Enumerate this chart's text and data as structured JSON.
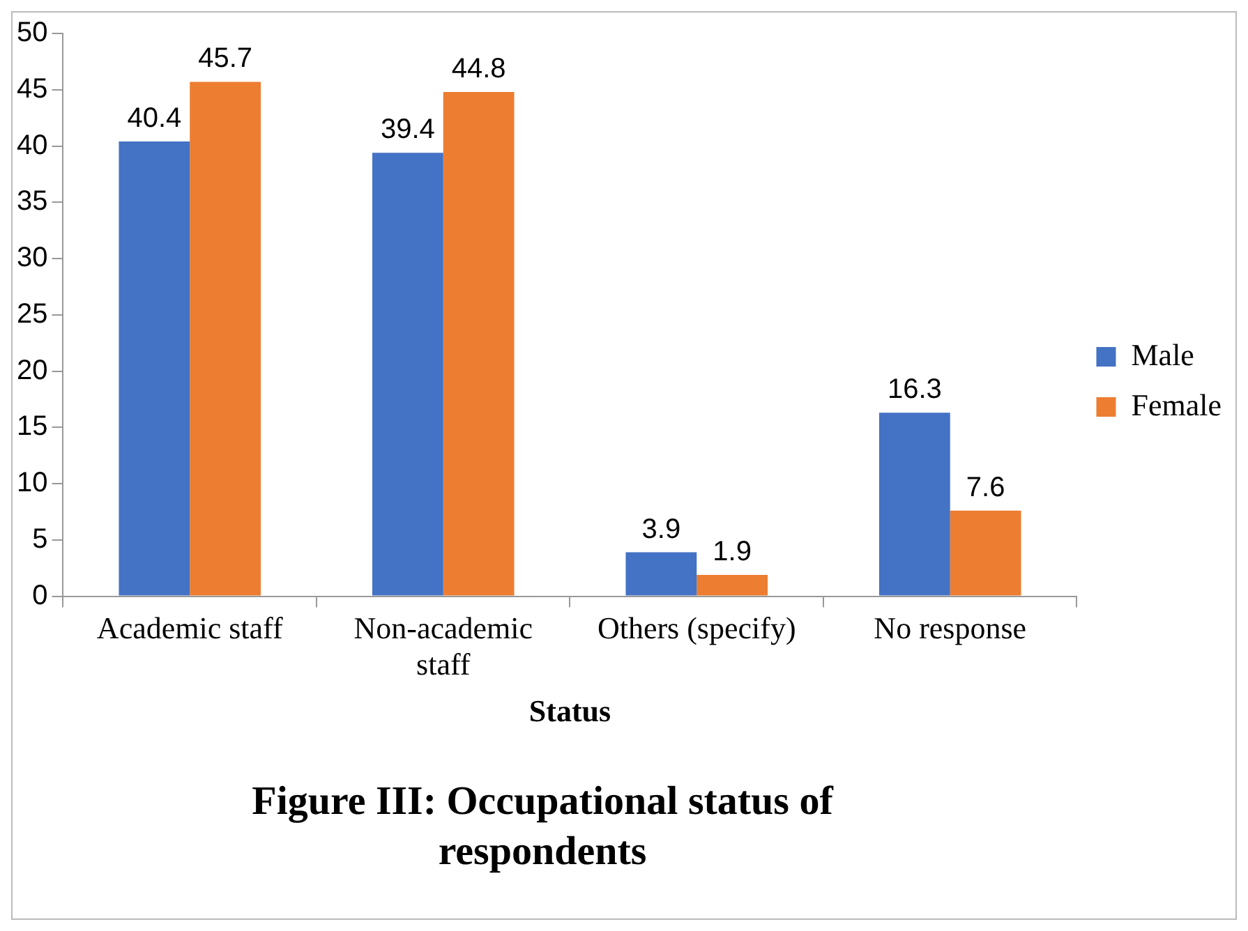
{
  "chart_data": {
    "type": "bar",
    "title": "Figure III: Occupational status of respondents",
    "xlabel": "Status",
    "categories": [
      "Academic staff",
      "Non-academic staff",
      "Others (specify)",
      "No response"
    ],
    "series": [
      {
        "name": "Male",
        "color": "#4472c4",
        "values": [
          40.4,
          39.4,
          3.9,
          16.3
        ]
      },
      {
        "name": "Female",
        "color": "#ed7d31",
        "values": [
          45.7,
          44.8,
          1.9,
          7.6
        ]
      }
    ],
    "ylim": [
      0,
      50
    ],
    "yticks": [
      0,
      5,
      10,
      15,
      20,
      25,
      30,
      35,
      40,
      45,
      50
    ],
    "legend": "right",
    "data_labels": true
  }
}
